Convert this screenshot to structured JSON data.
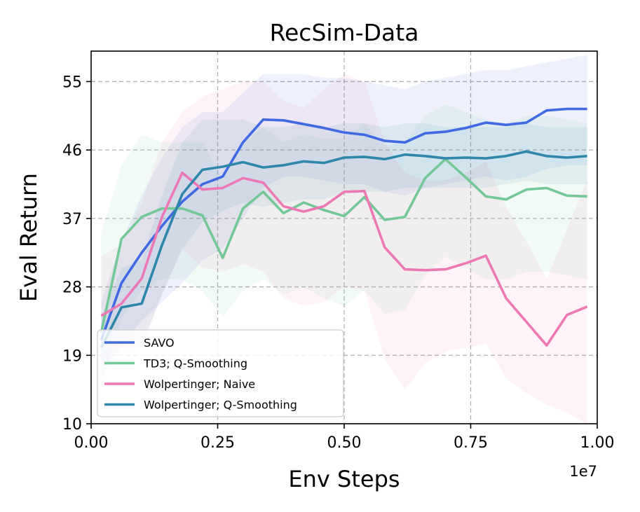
{
  "chart_data": {
    "type": "line",
    "title": "RecSim-Data",
    "xlabel": "Env Steps",
    "ylabel": "Eval Return",
    "x_offset_label": "1e7",
    "xlim": [
      0.0,
      1.0
    ],
    "ylim": [
      10,
      59
    ],
    "xticks": [
      0.0,
      0.25,
      0.5,
      0.75,
      1.0
    ],
    "xtick_labels": [
      "0.00",
      "0.25",
      "0.50",
      "0.75",
      "1.00"
    ],
    "yticks": [
      10,
      19,
      28,
      37,
      46,
      55
    ],
    "ytick_labels": [
      "10",
      "19",
      "28",
      "37",
      "46",
      "55"
    ],
    "grid": true,
    "legend_position": "lower-left",
    "x": [
      0.02,
      0.06,
      0.1,
      0.14,
      0.18,
      0.22,
      0.26,
      0.3,
      0.34,
      0.38,
      0.42,
      0.46,
      0.5,
      0.54,
      0.58,
      0.62,
      0.66,
      0.7,
      0.74,
      0.78,
      0.82,
      0.86,
      0.9,
      0.94,
      0.98
    ],
    "series": [
      {
        "name": "SAVO",
        "color": "#4169e1",
        "values": [
          21.0,
          28.5,
          32.5,
          36.0,
          39.2,
          41.5,
          42.5,
          47.0,
          50.0,
          49.9,
          49.4,
          48.9,
          48.3,
          48.0,
          47.2,
          47.0,
          48.2,
          48.4,
          48.9,
          49.6,
          49.3,
          49.6,
          51.2,
          51.4,
          51.4
        ],
        "lower": [
          17.0,
          20.5,
          23.5,
          26.0,
          28.5,
          31.5,
          33.0,
          37.0,
          41.0,
          42.5,
          42.5,
          42.0,
          41.5,
          41.5,
          40.5,
          40.0,
          41.0,
          41.5,
          42.0,
          42.5,
          42.0,
          42.5,
          43.5,
          44.0,
          44.0
        ],
        "upper": [
          26.0,
          34.0,
          40.0,
          45.0,
          49.0,
          51.0,
          51.0,
          53.5,
          56.0,
          56.0,
          56.0,
          55.5,
          55.5,
          55.0,
          54.5,
          54.0,
          55.0,
          55.5,
          56.0,
          56.5,
          56.5,
          57.0,
          57.5,
          58.0,
          58.5
        ]
      },
      {
        "name": "TD3; Q-Smoothing",
        "color": "#74c797",
        "values": [
          22.0,
          34.3,
          37.2,
          38.3,
          38.3,
          37.4,
          31.8,
          38.3,
          40.5,
          37.7,
          39.1,
          38.1,
          37.3,
          39.8,
          36.8,
          37.2,
          42.3,
          44.8,
          42.4,
          39.9,
          39.5,
          40.8,
          41.0,
          40.0,
          39.9
        ],
        "lower": [
          15.0,
          24.0,
          27.5,
          29.0,
          29.0,
          27.5,
          24.0,
          27.5,
          29.0,
          27.0,
          28.0,
          26.5,
          25.5,
          27.5,
          24.5,
          25.0,
          29.5,
          32.0,
          30.5,
          29.0,
          29.0,
          30.0,
          30.0,
          29.5,
          29.0
        ],
        "upper": [
          35.0,
          44.0,
          48.0,
          47.0,
          47.0,
          47.0,
          42.0,
          47.0,
          49.0,
          47.0,
          48.0,
          47.5,
          47.5,
          49.5,
          46.5,
          47.0,
          50.5,
          52.0,
          51.0,
          50.0,
          49.5,
          50.5,
          50.5,
          50.0,
          49.5
        ]
      },
      {
        "name": "Wolpertinger; Naive",
        "color": "#ec78b4",
        "values": [
          24.2,
          25.8,
          29.1,
          37.2,
          43.0,
          40.8,
          41.0,
          42.3,
          41.7,
          38.6,
          37.9,
          38.6,
          40.5,
          40.6,
          33.2,
          30.3,
          30.2,
          30.3,
          31.1,
          32.1,
          26.5,
          23.4,
          20.3,
          24.3,
          25.4
        ],
        "lower": [
          18.0,
          19.0,
          20.5,
          27.0,
          33.0,
          30.5,
          30.0,
          31.0,
          30.0,
          26.5,
          25.5,
          26.0,
          28.0,
          27.5,
          18.5,
          14.5,
          18.0,
          19.5,
          20.0,
          20.5,
          16.0,
          14.0,
          12.5,
          11.5,
          10.0
        ],
        "upper": [
          32.0,
          33.5,
          39.0,
          47.0,
          51.0,
          53.0,
          54.0,
          55.0,
          55.0,
          52.5,
          51.5,
          54.0,
          56.0,
          55.0,
          47.0,
          43.0,
          42.0,
          42.0,
          43.0,
          44.5,
          38.5,
          34.0,
          29.0,
          35.5,
          42.0
        ]
      },
      {
        "name": "Wolpertinger; Q-Smoothing",
        "color": "#2e86ab",
        "values": [
          20.0,
          25.3,
          25.8,
          33.5,
          40.2,
          43.4,
          43.8,
          44.4,
          43.7,
          44.0,
          44.5,
          44.3,
          45.0,
          45.1,
          44.8,
          45.4,
          45.2,
          44.9,
          45.0,
          44.9,
          45.2,
          45.8,
          45.2,
          45.0,
          45.2
        ],
        "lower": [
          16.0,
          20.0,
          20.0,
          27.0,
          33.0,
          36.5,
          38.0,
          39.0,
          38.5,
          39.0,
          39.5,
          39.5,
          40.5,
          40.5,
          40.5,
          41.0,
          41.0,
          41.0,
          41.0,
          41.0,
          41.5,
          42.0,
          41.5,
          41.5,
          41.5
        ],
        "upper": [
          24.0,
          30.5,
          31.5,
          40.0,
          47.0,
          50.0,
          50.0,
          50.0,
          49.0,
          49.0,
          49.5,
          49.0,
          49.5,
          49.5,
          49.0,
          49.5,
          49.5,
          49.0,
          49.0,
          49.0,
          49.0,
          49.5,
          49.0,
          49.0,
          49.0
        ]
      }
    ]
  }
}
